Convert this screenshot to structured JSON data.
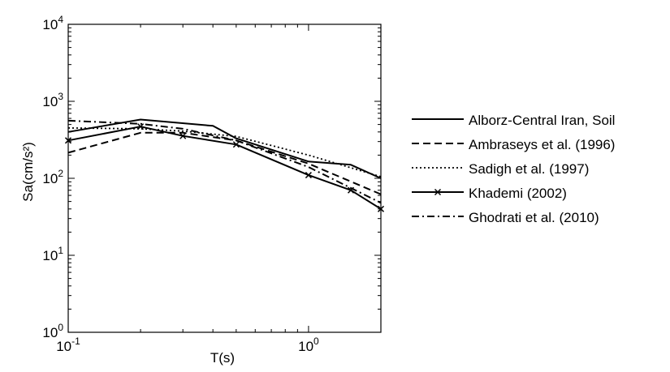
{
  "chart_data": {
    "type": "line",
    "xlabel": "T(s)",
    "ylabel": "Sa(cm/s²)",
    "xscale": "log",
    "yscale": "log",
    "xlim": [
      0.1,
      2
    ],
    "ylim": [
      1,
      10000
    ],
    "grid": false,
    "legend_position": "right",
    "x_ticks": [
      {
        "value": 0.1,
        "base": "10",
        "exp": "-1"
      },
      {
        "value": 1,
        "base": "10",
        "exp": "0"
      }
    ],
    "y_ticks": [
      {
        "value": 1,
        "base": "10",
        "exp": "0"
      },
      {
        "value": 10,
        "base": "10",
        "exp": "1"
      },
      {
        "value": 100,
        "base": "10",
        "exp": "2"
      },
      {
        "value": 1000,
        "base": "10",
        "exp": "3"
      },
      {
        "value": 10000,
        "base": "10",
        "exp": "4"
      }
    ],
    "series": [
      {
        "name": "Alborz-Central Iran, Soil",
        "dash": "solid",
        "marker": "none",
        "x": [
          0.1,
          0.2,
          0.4,
          0.5,
          1.0,
          1.5,
          2.0
        ],
        "y": [
          400,
          580,
          480,
          330,
          165,
          150,
          100
        ]
      },
      {
        "name": "Ambraseys et al. (1996)",
        "dash": "dashed",
        "marker": "none",
        "x": [
          0.1,
          0.2,
          0.3,
          0.5,
          1.0,
          2.0
        ],
        "y": [
          215,
          390,
          390,
          310,
          155,
          62
        ]
      },
      {
        "name": "Sadigh et al. (1997)",
        "dash": "dotted",
        "marker": "none",
        "x": [
          0.1,
          0.2,
          0.3,
          0.5,
          1.0,
          2.0
        ],
        "y": [
          450,
          440,
          410,
          350,
          200,
          105
        ]
      },
      {
        "name": "Khademi (2002)",
        "dash": "solid",
        "marker": "x",
        "x": [
          0.1,
          0.2,
          0.3,
          0.5,
          1.0,
          1.5,
          2.0
        ],
        "y": [
          310,
          470,
          355,
          275,
          110,
          70,
          40
        ]
      },
      {
        "name": "Ghodrati et al. (2010)",
        "dash": "dashdot",
        "marker": "none",
        "x": [
          0.1,
          0.2,
          0.3,
          0.5,
          1.0,
          2.0
        ],
        "y": [
          560,
          510,
          440,
          310,
          140,
          48
        ]
      }
    ]
  }
}
